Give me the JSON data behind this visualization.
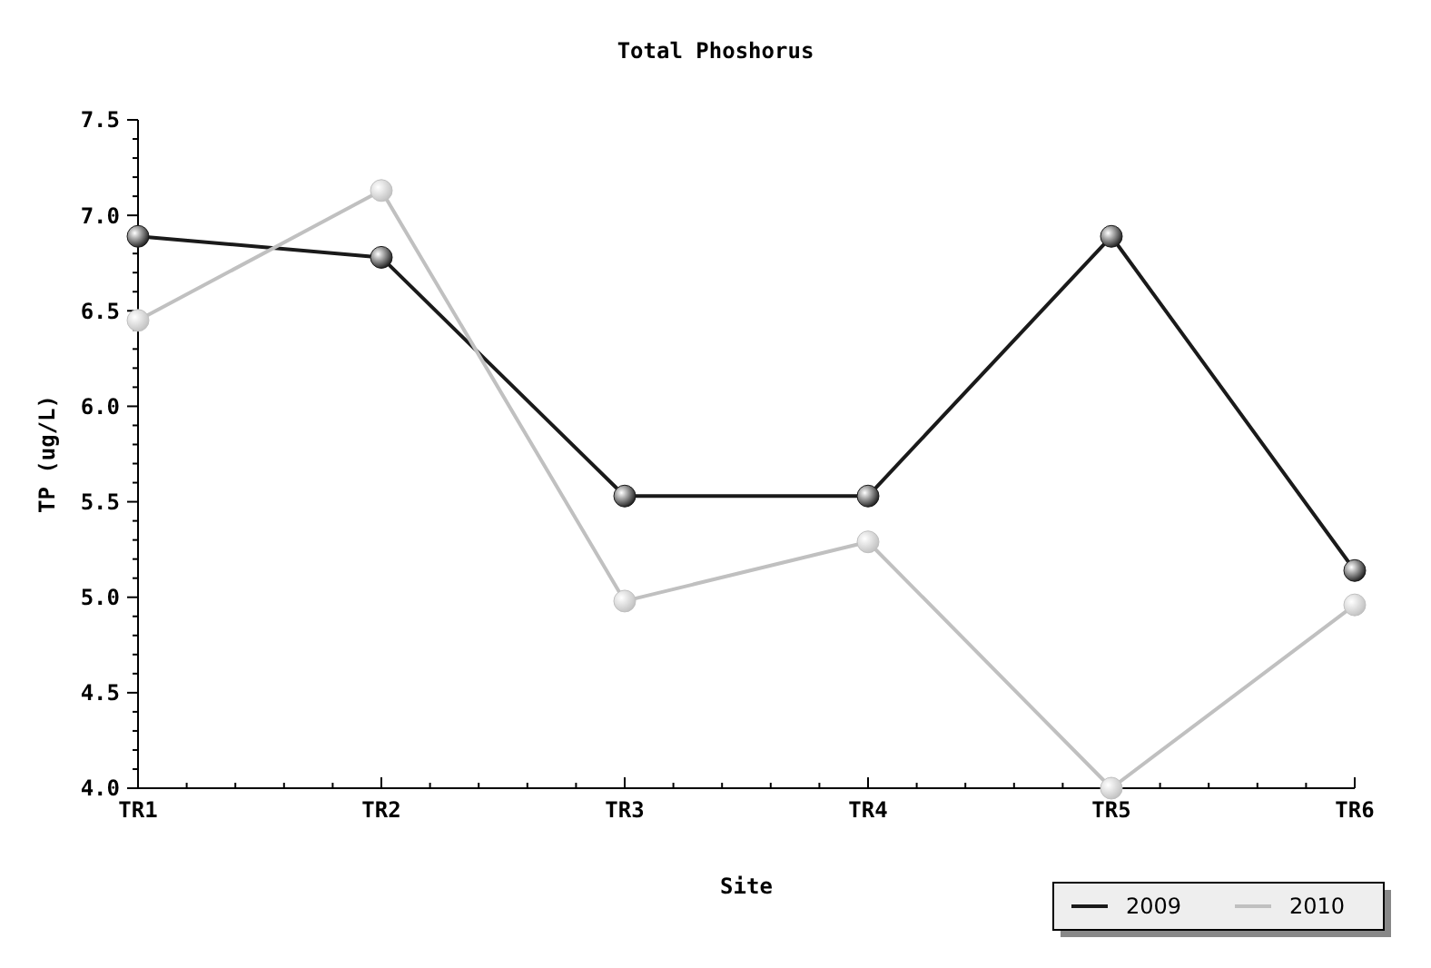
{
  "chart_data": {
    "type": "line",
    "title": "Total Phoshorus",
    "xlabel": "Site",
    "ylabel": "TP (ug/L)",
    "categories": [
      "TR1",
      "TR2",
      "TR3",
      "TR4",
      "TR5",
      "TR6"
    ],
    "series": [
      {
        "name": "2009",
        "color": "#1a1a1a",
        "values": [
          6.89,
          6.78,
          5.53,
          5.53,
          6.89,
          5.14
        ]
      },
      {
        "name": "2010",
        "color": "#c0c0c0",
        "values": [
          6.45,
          7.13,
          4.98,
          5.29,
          4.0,
          4.96
        ]
      }
    ],
    "ylim": [
      4.0,
      7.5
    ],
    "yticks": [
      {
        "value": 4.0,
        "label": "4.0"
      },
      {
        "value": 4.5,
        "label": "4.5"
      },
      {
        "value": 5.0,
        "label": "5.0"
      },
      {
        "value": 5.5,
        "label": "5.5"
      },
      {
        "value": 6.0,
        "label": "6.0"
      },
      {
        "value": 6.5,
        "label": "6.5"
      },
      {
        "value": 7.0,
        "label": "7.0"
      },
      {
        "value": 7.5,
        "label": "7.5"
      }
    ],
    "grid": false,
    "legend": "bottom right",
    "marker": "circle",
    "line_style": "solid"
  }
}
